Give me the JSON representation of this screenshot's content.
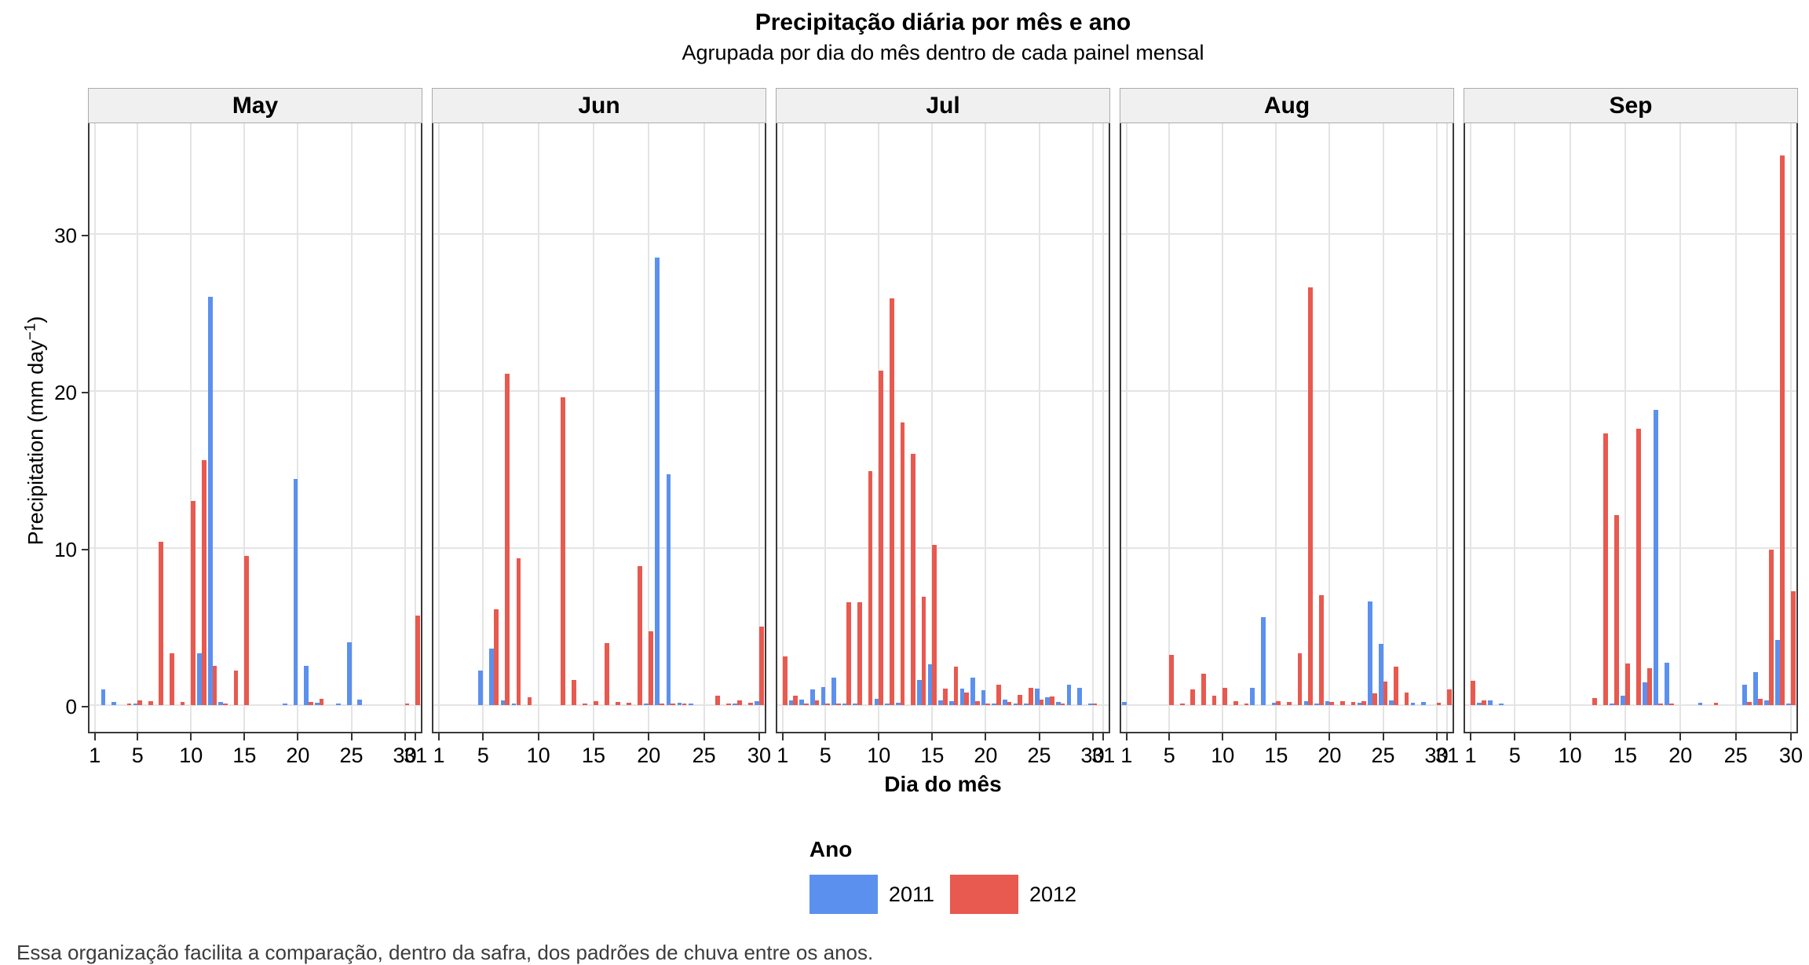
{
  "title": "Precipitação diária por mês e ano",
  "subtitle": "Agrupada por dia do mês dentro de cada painel mensal",
  "footer": "Essa organização facilita a comparação, dentro da safra, dos padrões de chuva entre os anos.",
  "y_axis": {
    "title_pre": "Precipitation (mm day",
    "title_sup": "−1",
    "title_post": ")",
    "ticks": [
      0,
      10,
      20,
      30
    ]
  },
  "x_axis": {
    "title": "Dia do mês",
    "major_ticks": [
      1,
      5,
      10,
      15,
      20,
      25,
      30
    ]
  },
  "legend": {
    "title": "Ano",
    "items": [
      {
        "label": "2011",
        "color": "#5C90EE"
      },
      {
        "label": "2012",
        "color": "#E8594F"
      }
    ]
  },
  "colors": {
    "2011": "#5C90EE",
    "2012": "#E8594F"
  },
  "chart_data": {
    "type": "bar",
    "ylabel": "Precipitation (mm day^-1)",
    "xlabel": "Dia do mês",
    "ylim": [
      0,
      37
    ],
    "gridlines_y": [
      0,
      10,
      20,
      30
    ],
    "legend_position": "bottom",
    "facets": [
      {
        "month": "May",
        "days": 31,
        "series": [
          {
            "name": "2011",
            "values": [
              0,
              1,
              0.2,
              0,
              0.1,
              0,
              0,
              0,
              0,
              0,
              3.3,
              26,
              0.2,
              0,
              0,
              0,
              0,
              0,
              0.1,
              14.4,
              2.5,
              0.15,
              0,
              0.1,
              4,
              0.35,
              0,
              0,
              0,
              0,
              0
            ]
          },
          {
            "name": "2012",
            "values": [
              0,
              0,
              0,
              0.1,
              0.3,
              0.25,
              10.4,
              3.3,
              0.2,
              13,
              15.6,
              2.5,
              0.1,
              2.2,
              9.5,
              0,
              0,
              0,
              0,
              0,
              0.2,
              0.4,
              0,
              0,
              0,
              0,
              0,
              0,
              0,
              0.1,
              5.7
            ]
          }
        ]
      },
      {
        "month": "Jun",
        "days": 30,
        "series": [
          {
            "name": "2011",
            "values": [
              0,
              0,
              0,
              0,
              2.2,
              3.6,
              0.3,
              0.1,
              0,
              0,
              0,
              0,
              0,
              0,
              0,
              0,
              0,
              0,
              0,
              0.1,
              28.5,
              14.7,
              0.15,
              0.1,
              0,
              0,
              0,
              0.1,
              0,
              0.25
            ]
          },
          {
            "name": "2012",
            "values": [
              0,
              0,
              0,
              0,
              0,
              6.1,
              21.1,
              9.35,
              0.5,
              0,
              0,
              19.6,
              1.6,
              0.1,
              0.25,
              3.95,
              0.2,
              0.15,
              8.85,
              4.7,
              0.1,
              0.1,
              0.1,
              0,
              0,
              0.6,
              0.1,
              0.3,
              0.15,
              5
            ]
          }
        ]
      },
      {
        "month": "Jul",
        "days": 31,
        "series": [
          {
            "name": "2011",
            "values": [
              0,
              0.3,
              0.35,
              1,
              1.15,
              1.75,
              0.1,
              0.1,
              0,
              0.4,
              0.1,
              0.15,
              0,
              1.6,
              2.6,
              0.3,
              0.25,
              1.05,
              1.75,
              0.95,
              0.1,
              0.35,
              0.1,
              0.1,
              1.05,
              0.5,
              0.2,
              1.3,
              1.1,
              0.1,
              0
            ]
          },
          {
            "name": "2012",
            "values": [
              3.1,
              0.6,
              0.1,
              0.3,
              0.1,
              0.1,
              6.55,
              6.55,
              14.9,
              21.3,
              25.9,
              18,
              16,
              6.9,
              10.2,
              1.05,
              2.45,
              0.8,
              0.25,
              0.1,
              1.3,
              0.2,
              0.65,
              1.1,
              0.35,
              0.55,
              0.1,
              0,
              0,
              0.1,
              0
            ]
          }
        ]
      },
      {
        "month": "Aug",
        "days": 31,
        "series": [
          {
            "name": "2011",
            "values": [
              0.2,
              0,
              0,
              0,
              0,
              0,
              0,
              0,
              0,
              0,
              0,
              0,
              1.1,
              5.6,
              0.15,
              0,
              0,
              0.25,
              0.1,
              0.25,
              0,
              0,
              0.15,
              6.6,
              3.9,
              0.3,
              0,
              0.15,
              0.2,
              0,
              0
            ]
          },
          {
            "name": "2012",
            "values": [
              0,
              0,
              0,
              0,
              3.2,
              0.1,
              1,
              2,
              0.6,
              1.1,
              0.25,
              0.1,
              0,
              0,
              0.25,
              0.2,
              3.3,
              26.6,
              7,
              0.2,
              0.25,
              0.2,
              0.25,
              0.75,
              1.5,
              2.45,
              0.8,
              0,
              0,
              0.15,
              1
            ]
          }
        ]
      },
      {
        "month": "Sep",
        "days": 30,
        "series": [
          {
            "name": "2011",
            "values": [
              0,
              0.15,
              0.3,
              0.1,
              0,
              0,
              0,
              0,
              0,
              0,
              0,
              0,
              0,
              0.1,
              0.6,
              0,
              1.45,
              18.8,
              2.7,
              0,
              0,
              0.15,
              0,
              0,
              0,
              1.3,
              2.1,
              0.3,
              4.15,
              0.1
            ]
          },
          {
            "name": "2012",
            "values": [
              1.55,
              0.3,
              0,
              0,
              0,
              0,
              0,
              0,
              0,
              0,
              0,
              0.45,
              17.3,
              12.1,
              2.65,
              17.6,
              2.35,
              0.1,
              0.1,
              0,
              0,
              0,
              0.15,
              0,
              0,
              0.2,
              0.4,
              9.9,
              35,
              7.25
            ]
          }
        ]
      }
    ]
  }
}
